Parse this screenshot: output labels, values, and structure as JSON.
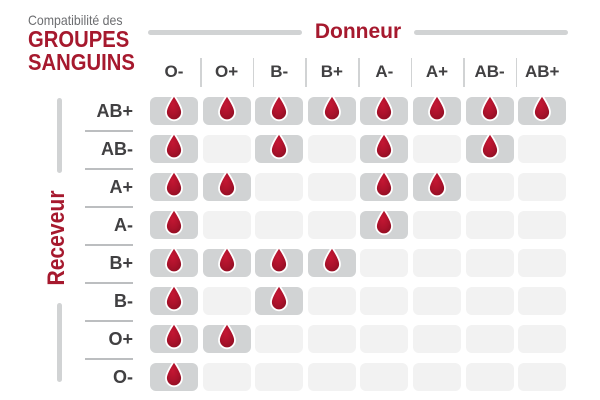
{
  "title": {
    "line1": "Compatibilité des",
    "line2": "GROUPES",
    "line3": "SANGUINS"
  },
  "axes": {
    "donor_label": "Donneur",
    "receiver_label": "Receveur"
  },
  "colors": {
    "red": "#A6192E",
    "cell-on": "#D1D3D4",
    "cell-off": "#F2F2F2",
    "line": "#D1D3D4",
    "label": "#414042",
    "subtitle": "#6D6E71",
    "separator": "#BCBEC0",
    "drop-center": "#C41733",
    "drop-mid": "#AB122B",
    "drop-edge": "#8C0E22"
  },
  "icons": {
    "compatible": "blood-drop-icon"
  },
  "chart_data": {
    "type": "heatmap",
    "title": "Compatibilité des GROUPES SANGUINS",
    "x_label": "Donneur",
    "y_label": "Receveur",
    "x_categories": [
      "O-",
      "O+",
      "B-",
      "B+",
      "A-",
      "A+",
      "AB-",
      "AB+"
    ],
    "y_categories": [
      "AB+",
      "AB-",
      "A+",
      "A-",
      "B+",
      "B-",
      "O+",
      "O-"
    ],
    "values": [
      [
        1,
        1,
        1,
        1,
        1,
        1,
        1,
        1
      ],
      [
        1,
        0,
        1,
        0,
        1,
        0,
        1,
        0
      ],
      [
        1,
        1,
        0,
        0,
        1,
        1,
        0,
        0
      ],
      [
        1,
        0,
        0,
        0,
        1,
        0,
        0,
        0
      ],
      [
        1,
        1,
        1,
        1,
        0,
        0,
        0,
        0
      ],
      [
        1,
        0,
        1,
        0,
        0,
        0,
        0,
        0
      ],
      [
        1,
        1,
        0,
        0,
        0,
        0,
        0,
        0
      ],
      [
        1,
        0,
        0,
        0,
        0,
        0,
        0,
        0
      ]
    ],
    "legend": "blood drop = compatible, empty cell = incompatible",
    "grid": "rounded cells, gray = compatible, light gray = incompatible"
  }
}
